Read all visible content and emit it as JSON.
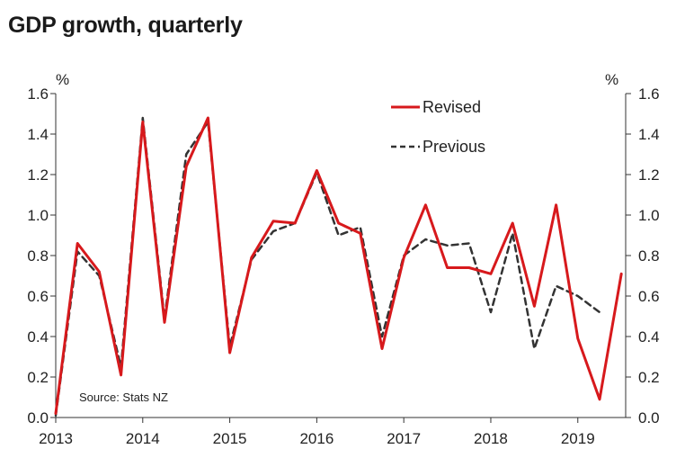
{
  "chart_data": {
    "type": "line",
    "title": "GDP growth, quarterly",
    "ylabel_left": "%",
    "ylabel_right": "%",
    "source": "Source: Stats NZ",
    "ylim": [
      0,
      1.6
    ],
    "yticks": [
      0.0,
      0.2,
      0.4,
      0.6,
      0.8,
      1.0,
      1.2,
      1.4,
      1.6
    ],
    "ytick_labels": [
      "0.0",
      "0.2",
      "0.4",
      "0.6",
      "0.8",
      "1.0",
      "1.2",
      "1.4",
      "1.6"
    ],
    "xlim": [
      2013.0,
      2019.55
    ],
    "xticks": [
      2013,
      2014,
      2015,
      2016,
      2017,
      2018,
      2019
    ],
    "xtick_labels": [
      "2013",
      "2014",
      "2015",
      "2016",
      "2017",
      "2018",
      "2019"
    ],
    "legend_position": "top-center",
    "series": [
      {
        "name": "Revised",
        "style": "solid",
        "color": "#d7191c",
        "x": [
          2013.0,
          2013.25,
          2013.5,
          2013.75,
          2014.0,
          2014.25,
          2014.5,
          2014.75,
          2015.0,
          2015.25,
          2015.5,
          2015.75,
          2016.0,
          2016.25,
          2016.5,
          2016.75,
          2017.0,
          2017.25,
          2017.5,
          2017.75,
          2018.0,
          2018.25,
          2018.5,
          2018.75,
          2019.0,
          2019.25,
          2019.5
        ],
        "values": [
          0.02,
          0.86,
          0.72,
          0.21,
          1.46,
          0.47,
          1.24,
          1.48,
          0.32,
          0.79,
          0.97,
          0.96,
          1.22,
          0.96,
          0.91,
          0.34,
          0.79,
          1.05,
          0.74,
          0.74,
          0.71,
          0.96,
          0.55,
          1.05,
          0.39,
          0.09,
          0.71
        ]
      },
      {
        "name": "Previous",
        "style": "dashed",
        "color": "#333333",
        "x": [
          2013.0,
          2013.25,
          2013.5,
          2013.75,
          2014.0,
          2014.25,
          2014.5,
          2014.75,
          2015.0,
          2015.25,
          2015.5,
          2015.75,
          2016.0,
          2016.25,
          2016.5,
          2016.75,
          2017.0,
          2017.25,
          2017.5,
          2017.75,
          2018.0,
          2018.25,
          2018.5,
          2018.75,
          2019.0,
          2019.25
        ],
        "values": [
          0.01,
          0.82,
          0.7,
          0.25,
          1.48,
          0.49,
          1.3,
          1.46,
          0.35,
          0.78,
          0.92,
          0.96,
          1.21,
          0.9,
          0.94,
          0.4,
          0.8,
          0.88,
          0.85,
          0.86,
          0.52,
          0.91,
          0.34,
          0.65,
          0.6,
          0.52
        ]
      }
    ]
  }
}
